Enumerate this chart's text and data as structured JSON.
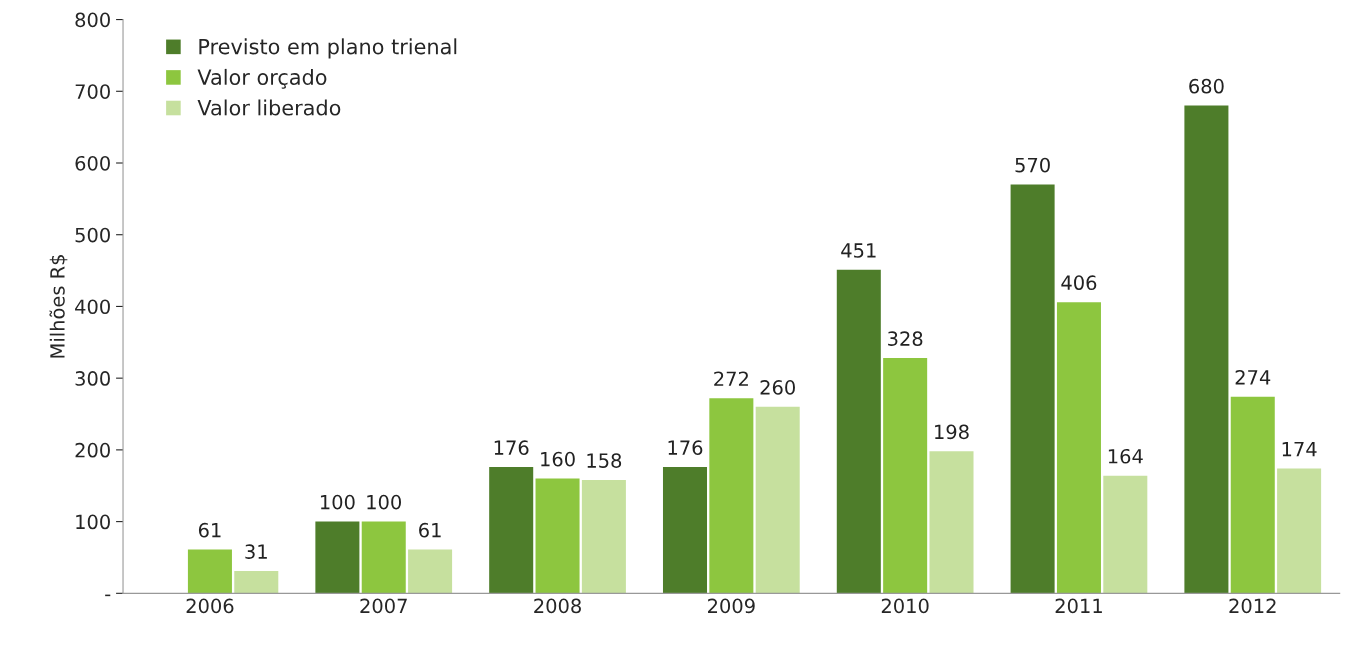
{
  "chart_data": {
    "type": "bar",
    "ylabel": "Milhões R$",
    "categories": [
      "2006",
      "2007",
      "2008",
      "2009",
      "2010",
      "2011",
      "2012"
    ],
    "series": [
      {
        "name": "Previsto em plano trienal",
        "color": "#4e7d2a",
        "values": [
          null,
          100,
          176,
          176,
          451,
          570,
          680
        ]
      },
      {
        "name": "Valor orçado",
        "color": "#8dc63f",
        "values": [
          61,
          100,
          160,
          272,
          328,
          406,
          274
        ]
      },
      {
        "name": "Valor liberado",
        "color": "#c6e09e",
        "values": [
          31,
          61,
          158,
          260,
          198,
          164,
          174
        ]
      }
    ],
    "ylim": [
      0,
      800
    ],
    "yticks": [
      {
        "value": 0,
        "label": "-"
      },
      100,
      200,
      300,
      400,
      500,
      600,
      700,
      800
    ],
    "data_labels": true,
    "legend": "top left",
    "grid": false
  }
}
